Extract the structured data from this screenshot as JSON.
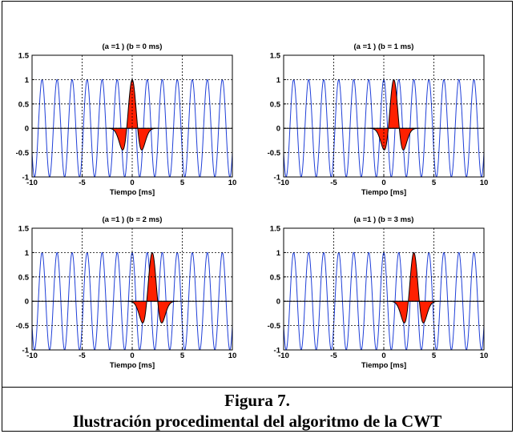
{
  "figure": {
    "label": "Figura 7.",
    "caption": "Ilustración procedimental del algoritmo de la CWT"
  },
  "colors": {
    "signal": "#1f3fd8",
    "wavelet_fill": "#ff2000",
    "wavelet_line": "#000000",
    "grid": "#000000"
  },
  "chart_data": [
    {
      "type": "line",
      "title": "(a =1 ) (b = 0 ms)",
      "xlabel": "Tiempo [ms]",
      "ylabel": "",
      "xlim": [
        -10,
        10
      ],
      "ylim": [
        -1,
        1.5
      ],
      "xticks": [
        "-10",
        "-5",
        "0",
        "5",
        "10"
      ],
      "yticks": [
        "-1",
        "-0.5",
        "0",
        "0.5",
        "1",
        "1.5"
      ],
      "grid": true,
      "series": [
        {
          "kind": "cosine",
          "amplitude": 1,
          "period_ms": 1.5
        },
        {
          "kind": "mexican-hat-wavelet",
          "scale_a": 1,
          "shift_b_ms": 0,
          "peak": 1,
          "minimum": -0.45,
          "support_ms": [
            -2.5,
            2.5
          ]
        }
      ]
    },
    {
      "type": "line",
      "title": "(a =1 ) (b = 1 ms)",
      "xlabel": "Tiempo [ms]",
      "ylabel": "",
      "xlim": [
        -10,
        10
      ],
      "ylim": [
        -1,
        1.5
      ],
      "xticks": [
        "-10",
        "-5",
        "0",
        "5",
        "10"
      ],
      "yticks": [
        "-1",
        "-0.5",
        "0",
        "0.5",
        "1",
        "1.5"
      ],
      "grid": true,
      "series": [
        {
          "kind": "cosine",
          "amplitude": 1,
          "period_ms": 1.5
        },
        {
          "kind": "mexican-hat-wavelet",
          "scale_a": 1,
          "shift_b_ms": 1,
          "peak": 1,
          "minimum": -0.45,
          "support_ms": [
            -1.5,
            3.5
          ]
        }
      ]
    },
    {
      "type": "line",
      "title": "(a =1 ) (b = 2 ms)",
      "xlabel": "Tiempo [ms]",
      "ylabel": "",
      "xlim": [
        -10,
        10
      ],
      "ylim": [
        -1,
        1.5
      ],
      "xticks": [
        "-10",
        "-5",
        "0",
        "5",
        "10"
      ],
      "yticks": [
        "-1",
        "-0.5",
        "0",
        "0.5",
        "1",
        "1.5"
      ],
      "grid": true,
      "series": [
        {
          "kind": "cosine",
          "amplitude": 1,
          "period_ms": 1.5
        },
        {
          "kind": "mexican-hat-wavelet",
          "scale_a": 1,
          "shift_b_ms": 2,
          "peak": 1,
          "minimum": -0.45,
          "support_ms": [
            -0.5,
            4.5
          ]
        }
      ]
    },
    {
      "type": "line",
      "title": "(a =1 ) (b = 3 ms)",
      "xlabel": "Tiempo [ms]",
      "ylabel": "",
      "xlim": [
        -10,
        10
      ],
      "ylim": [
        -1,
        1.5
      ],
      "xticks": [
        "-10",
        "-5",
        "0",
        "5",
        "10"
      ],
      "yticks": [
        "-1",
        "-0.5",
        "0",
        "0.5",
        "1",
        "1.5"
      ],
      "grid": true,
      "series": [
        {
          "kind": "cosine",
          "amplitude": 1,
          "period_ms": 1.5
        },
        {
          "kind": "mexican-hat-wavelet",
          "scale_a": 1,
          "shift_b_ms": 3,
          "peak": 1,
          "minimum": -0.45,
          "support_ms": [
            0.5,
            5.5
          ]
        }
      ]
    }
  ]
}
